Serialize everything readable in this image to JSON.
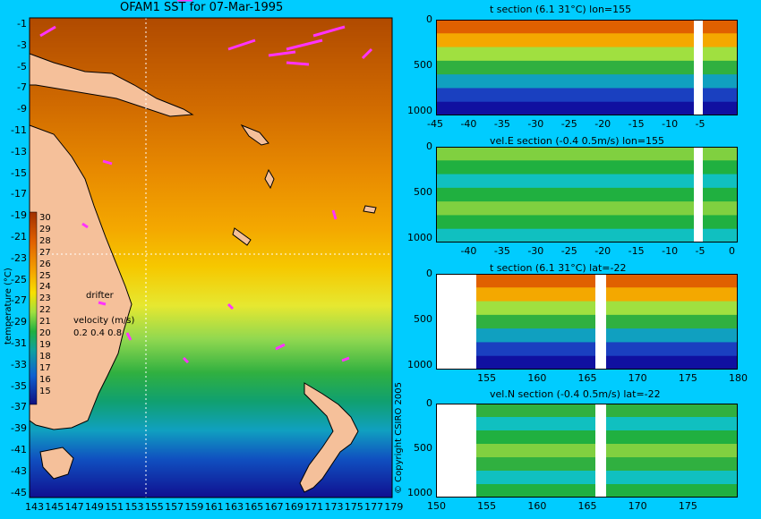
{
  "map": {
    "title": "OFAM1 SST for 07-Mar-1995",
    "lat_ticks": [
      "-1",
      "-3",
      "-5",
      "-7",
      "-9",
      "-11",
      "-13",
      "-15",
      "-17",
      "-19",
      "-21",
      "-23",
      "-25",
      "-27",
      "-29",
      "-31",
      "-33",
      "-35",
      "-37",
      "-39",
      "-41",
      "-43",
      "-45"
    ],
    "lon_ticks": [
      "143",
      "145",
      "147",
      "149",
      "151",
      "153",
      "155",
      "157",
      "159",
      "161",
      "163",
      "165",
      "167",
      "169",
      "171",
      "173",
      "175",
      "177",
      "179"
    ],
    "colorbar_ticks": [
      "30",
      "29",
      "28",
      "27",
      "26",
      "25",
      "24",
      "23",
      "22",
      "21",
      "20",
      "19",
      "18",
      "17",
      "16",
      "15"
    ],
    "colorbar_label": "temperature (°C)",
    "drifter_label": "drifter",
    "velocity_label": "velocity (m/s)",
    "velocity_scale": "0.2 0.4 0.8",
    "copyright": "© Copyright CSIRO 2005",
    "section_lon": 155,
    "section_lat": -22,
    "colors": {
      "land": "#f5c09a",
      "warm": "#c85a00",
      "cool": "#1a9a2a",
      "cold": "#1010a0",
      "drifter": "#ff33ff"
    }
  },
  "chart_data": [
    {
      "type": "heatmap",
      "title": "t section (6.1      31°C) lon=155",
      "x_ticks": [
        "-45",
        "-40",
        "-35",
        "-30",
        "-25",
        "-20",
        "-15",
        "-10",
        "-5"
      ],
      "y_ticks": [
        "0",
        "500",
        "1000"
      ],
      "xlim": [
        -45,
        0
      ],
      "ylim": [
        1050,
        0
      ]
    },
    {
      "type": "heatmap",
      "title": "vel.E section (-0.4      0.5m/s) lon=155",
      "x_ticks": [
        "-40",
        "-35",
        "-30",
        "-25",
        "-20",
        "-15",
        "-10",
        "-5",
        "0"
      ],
      "y_ticks": [
        "0",
        "500",
        "1000"
      ],
      "xlim": [
        -45,
        0
      ],
      "ylim": [
        1050,
        0
      ]
    },
    {
      "type": "heatmap",
      "title": "t section (6.1      31°C) lat=-22",
      "x_ticks": [
        "155",
        "160",
        "165",
        "170",
        "175",
        "180"
      ],
      "y_ticks": [
        "0",
        "500",
        "1000"
      ],
      "xlim": [
        150,
        180
      ],
      "ylim": [
        1050,
        0
      ]
    },
    {
      "type": "heatmap",
      "title": "vel.N section (-0.4      0.5m/s) lat=-22",
      "x_ticks": [
        "150",
        "155",
        "160",
        "165",
        "170",
        "175"
      ],
      "y_ticks": [
        "0",
        "500",
        "1000"
      ],
      "xlim": [
        150,
        180
      ],
      "ylim": [
        1050,
        0
      ]
    }
  ]
}
